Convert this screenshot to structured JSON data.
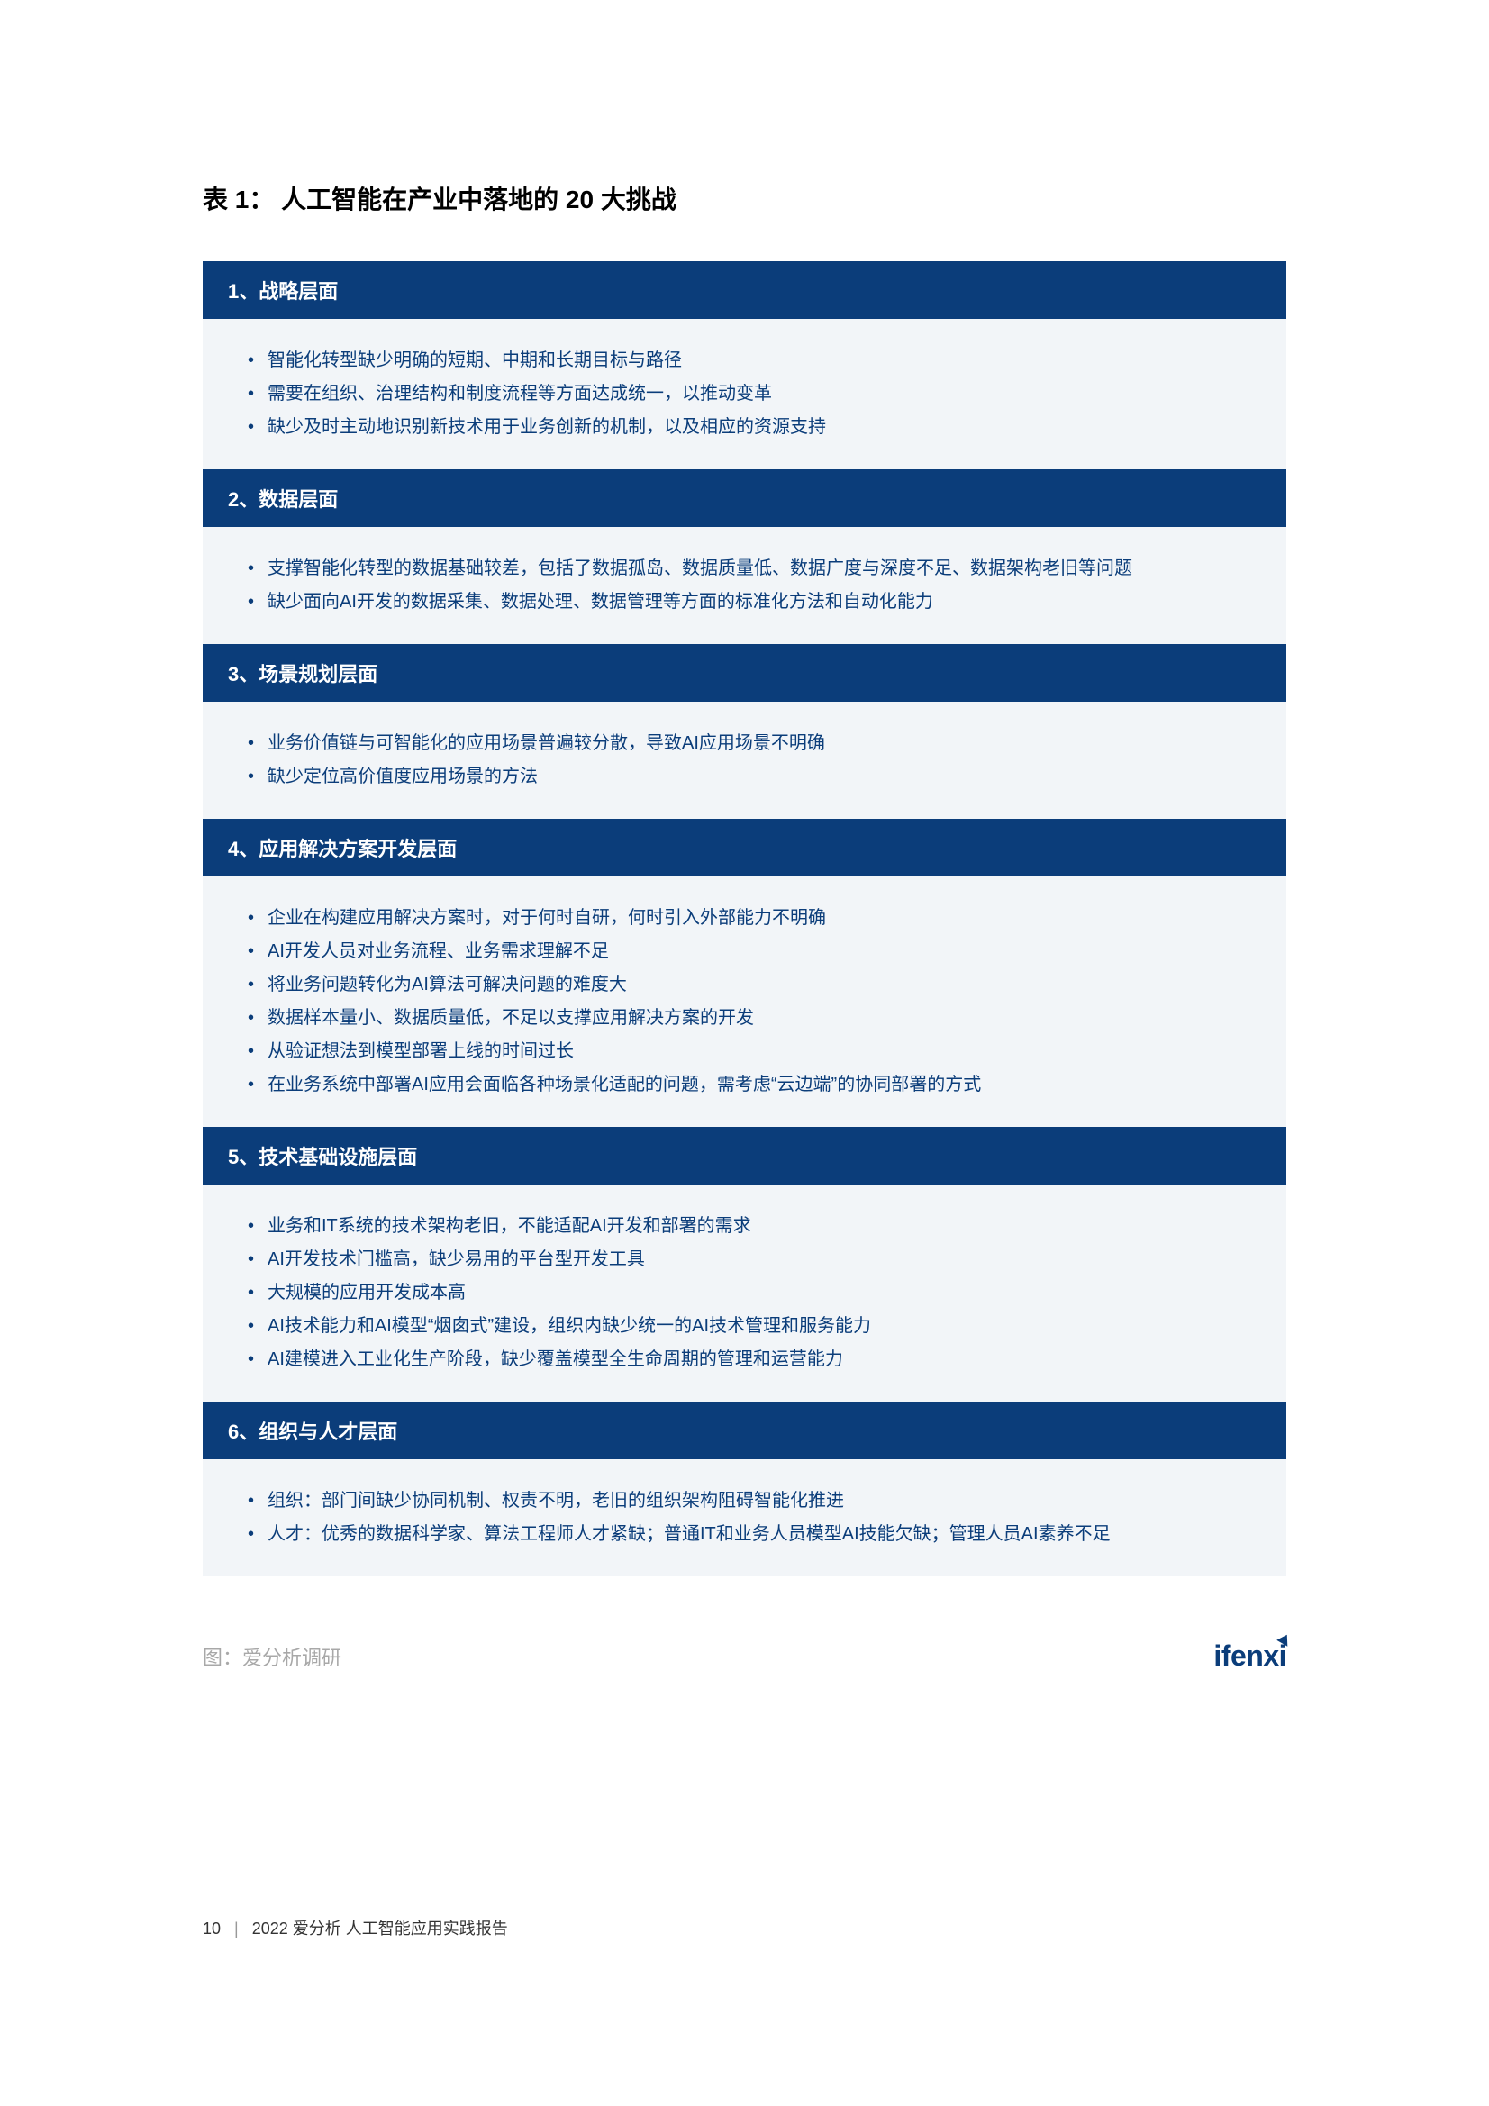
{
  "title": "表 1：  人工智能在产业中落地的 20 大挑战",
  "colors": {
    "header_bg": "#0b3d7a",
    "header_text": "#ffffff",
    "body_bg": "#f2f5f8",
    "body_text": "#0b3d7a",
    "source_text": "#a8a8a8",
    "brand_color": "#0b3d7a"
  },
  "sections": [
    {
      "header": "1、战略层面",
      "items": [
        "智能化转型缺少明确的短期、中期和长期目标与路径",
        "需要在组织、治理结构和制度流程等方面达成统一，以推动变革",
        "缺少及时主动地识别新技术用于业务创新的机制，以及相应的资源支持"
      ]
    },
    {
      "header": "2、数据层面",
      "items": [
        "支撑智能化转型的数据基础较差，包括了数据孤岛、数据质量低、数据广度与深度不足、数据架构老旧等问题",
        "缺少面向AI开发的数据采集、数据处理、数据管理等方面的标准化方法和自动化能力"
      ]
    },
    {
      "header": "3、场景规划层面",
      "items": [
        "业务价值链与可智能化的应用场景普遍较分散，导致AI应用场景不明确",
        "缺少定位高价值度应用场景的方法"
      ]
    },
    {
      "header": "4、应用解决方案开发层面",
      "items": [
        "企业在构建应用解决方案时，对于何时自研，何时引入外部能力不明确",
        "AI开发人员对业务流程、业务需求理解不足",
        "将业务问题转化为AI算法可解决问题的难度大",
        "数据样本量小、数据质量低，不足以支撑应用解决方案的开发",
        "从验证想法到模型部署上线的时间过长",
        "在业务系统中部署AI应用会面临各种场景化适配的问题，需考虑“云边端”的协同部署的方式"
      ]
    },
    {
      "header": "5、技术基础设施层面",
      "items": [
        "业务和IT系统的技术架构老旧，不能适配AI开发和部署的需求",
        "AI开发技术门槛高，缺少易用的平台型开发工具",
        "大规模的应用开发成本高",
        "AI技术能力和AI模型“烟囱式”建设，组织内缺少统一的AI技术管理和服务能力",
        "AI建模进入工业化生产阶段，缺少覆盖模型全生命周期的管理和运营能力"
      ]
    },
    {
      "header": "6、组织与人才层面",
      "items": [
        "组织：部门间缺少协同机制、权责不明，老旧的组织架构阻碍智能化推进",
        "人才：优秀的数据科学家、算法工程师人才紧缺；普通IT和业务人员模型AI技能欠缺；管理人员AI素养不足"
      ]
    }
  ],
  "source_label": "图：爱分析调研",
  "brand_name": "ifenxi",
  "footer": {
    "page_number": "10",
    "report_title": "2022 爱分析  人工智能应用实践报告"
  }
}
